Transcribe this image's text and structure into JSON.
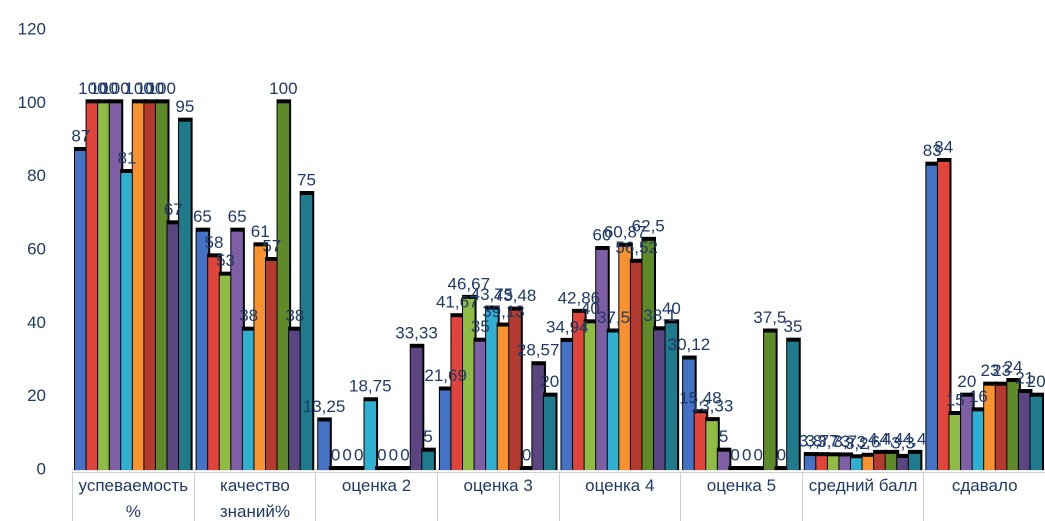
{
  "chart_data": {
    "type": "bar",
    "categories": [
      "успеваемость%",
      "качество знаний%",
      "оценка 2",
      "оценка 3",
      "оценка 4",
      "оценка 5",
      "средний балл",
      "сдавало"
    ],
    "ylim": [
      0,
      120
    ],
    "yticks": [
      0,
      20,
      40,
      60,
      80,
      100,
      120
    ],
    "grid": false,
    "series": [
      {
        "color": "#4472c4",
        "values": [
          87,
          65,
          13.25,
          21.69,
          34.94,
          30.12,
          3.8,
          83
        ],
        "value_labels": [
          "87",
          "65",
          "13,25",
          "21,69",
          "34,94",
          "30,12",
          "3,8",
          "83"
        ]
      },
      {
        "color": "#e0443a",
        "values": [
          100,
          58,
          0,
          41.67,
          42.86,
          15.48,
          3.77,
          84
        ],
        "value_labels": [
          "100",
          "58",
          "0",
          "41,67",
          "42,86",
          "15,48",
          "3,77",
          "84"
        ]
      },
      {
        "color": "#8fbc45",
        "values": [
          100,
          53,
          0,
          46.67,
          40,
          13.33,
          3.73,
          15
        ],
        "value_labels": [
          "100",
          "53",
          "0",
          "46,67",
          "40",
          "13,33",
          "3,73",
          "15"
        ]
      },
      {
        "color": "#7e5fa6",
        "values": [
          100,
          65,
          0,
          35,
          60,
          5,
          3.7,
          20
        ],
        "value_labels": [
          "100",
          "65",
          "0",
          "35",
          "60",
          "5",
          "3,7",
          "20"
        ]
      },
      {
        "color": "#2fb0d0",
        "values": [
          81,
          38,
          18.75,
          43.75,
          37.5,
          0,
          3.2,
          16
        ],
        "value_labels": [
          "81",
          "38",
          "18,75",
          "43,75",
          "37,5",
          "0",
          "3,2",
          "16"
        ]
      },
      {
        "color": "#f7922e",
        "values": [
          100,
          61,
          0,
          39.13,
          60.87,
          0,
          3.6,
          23
        ],
        "value_labels": [
          "100",
          "61",
          "0",
          "39,13",
          "60,87",
          "0",
          "3,6",
          "23"
        ]
      },
      {
        "color": "#b33a2e",
        "values": [
          100,
          57,
          0,
          43.48,
          56.52,
          0,
          4.4,
          23
        ],
        "value_labels": [
          "100",
          "57",
          "0",
          "43,48",
          "56,52",
          "0",
          "4,4",
          "23"
        ]
      },
      {
        "color": "#5e8a2a",
        "values": [
          100,
          100,
          0,
          0,
          62.5,
          37.5,
          4.4,
          24
        ],
        "value_labels": [
          "100",
          "100",
          "0",
          "0",
          "62,5",
          "37,5",
          "4,4",
          "24"
        ]
      },
      {
        "color": "#5a4580",
        "values": [
          67,
          38,
          33.33,
          28.57,
          38.1,
          0,
          3.3,
          21
        ],
        "value_labels": [
          "67",
          "38",
          "33,33",
          "28,57",
          "38,1",
          "0",
          "3,3",
          "21"
        ]
      },
      {
        "color": "#1f7a8c",
        "values": [
          95,
          75,
          5,
          20,
          40,
          35,
          4.4,
          20
        ],
        "value_labels": [
          "95",
          "75",
          "5",
          "20",
          "40",
          "35",
          "4,4",
          "20"
        ]
      }
    ]
  }
}
